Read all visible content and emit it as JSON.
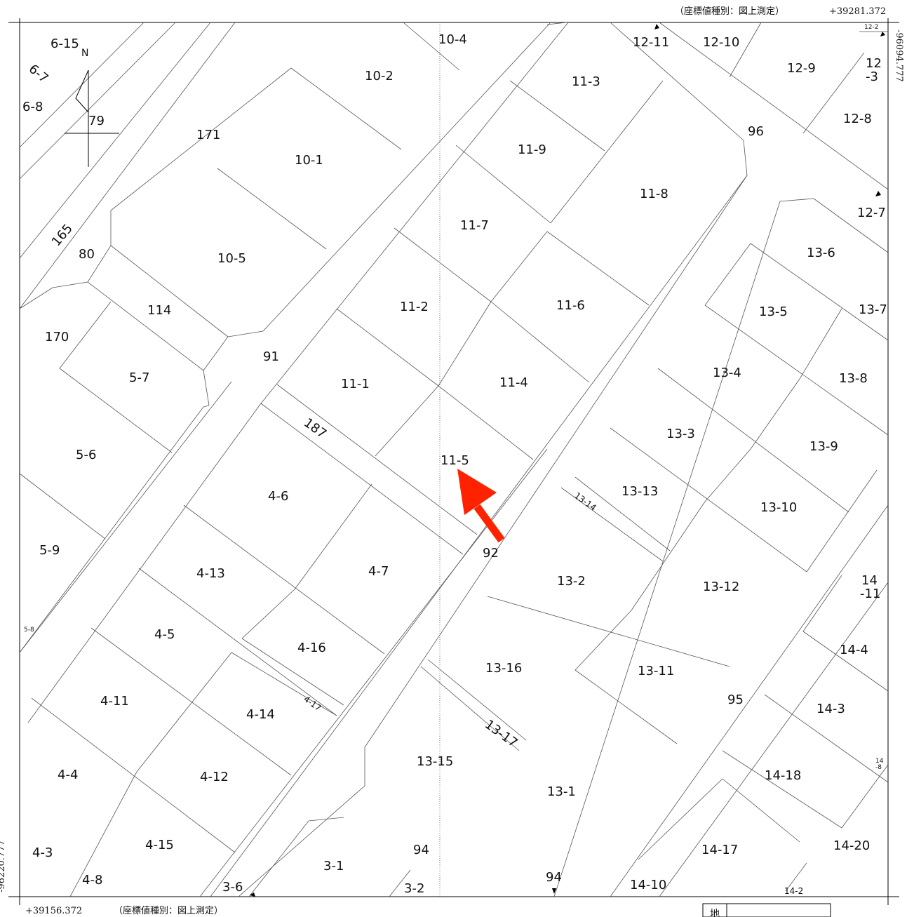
{
  "header": {
    "coord_type_top": "（座標値種別：図上測定）",
    "coord_x_top": "+39281.372",
    "coord_y_right": "-96094.777"
  },
  "footer": {
    "coord_x_bottom": "+39156.372",
    "coord_type_bottom": "（座標値種別：図上測定）",
    "coord_y_left": "-96220.777",
    "table_char": "地"
  },
  "north_arrow": {
    "label": "N"
  },
  "accent_colors": {
    "arrow": "#ff2200",
    "lines": "#555555",
    "frame": "#000000"
  },
  "parcels": {
    "p6_15": "6-15",
    "p6_7": "6-7",
    "p6_8": "6-8",
    "p79": "79",
    "p10_4": "10-4",
    "p10_2": "10-2",
    "p10_1": "10-1",
    "p10_5": "10-5",
    "p171": "171",
    "p165": "165",
    "p80": "80",
    "p170": "170",
    "p114": "114",
    "p5_7": "5-7",
    "p5_6": "5-6",
    "p5_9": "5-9",
    "p5_8": "5-8",
    "p91": "91",
    "p187": "187",
    "p11_3": "11-3",
    "p11_9": "11-9",
    "p11_7": "11-7",
    "p11_8": "11-8",
    "p11_2": "11-2",
    "p11_6": "11-6",
    "p11_1": "11-1",
    "p11_4": "11-4",
    "p11_5": "11-5",
    "p12_11": "12-11",
    "p12_10": "12-10",
    "p12_9": "12-9",
    "p12_2": "12-2",
    "p12_3a": "12",
    "p12_3b": "-3",
    "p12_8": "12-8",
    "p12_7": "12-7",
    "p96": "96",
    "p13_6": "13-6",
    "p13_5": "13-5",
    "p13_7": "13-7",
    "p13_4": "13-4",
    "p13_8": "13-8",
    "p13_3": "13-3",
    "p13_9": "13-9",
    "p13_13": "13-13",
    "p13_14": "13-14",
    "p13_10": "13-10",
    "p13_2": "13-2",
    "p13_12": "13-12",
    "p13_16": "13-16",
    "p13_11": "13-11",
    "p13_17": "13-17",
    "p13_15": "13-15",
    "p13_1": "13-1",
    "p4_6": "4-6",
    "p4_7": "4-7",
    "p4_13": "4-13",
    "p4_5": "4-5",
    "p4_16": "4-16",
    "p4_11": "4-11",
    "p4_14": "4-14",
    "p4_17": "4-17",
    "p4_4": "4-4",
    "p4_12": "4-12",
    "p4_3": "4-3",
    "p4_15": "4-15",
    "p4_8": "4-8",
    "p92": "92",
    "p95": "95",
    "p94a": "94",
    "p94b": "94",
    "p3_6": "3-6",
    "p3_1": "3-1",
    "p3_2": "3-2",
    "p14_11a": "14",
    "p14_11b": "-11",
    "p14_4": "14-4",
    "p14_3": "14-3",
    "p14_8a": "14",
    "p14_8b": "-8",
    "p14_18": "14-18",
    "p14_17": "14-17",
    "p14_20": "14-20",
    "p14_10": "14-10",
    "p14_2": "14-2"
  }
}
